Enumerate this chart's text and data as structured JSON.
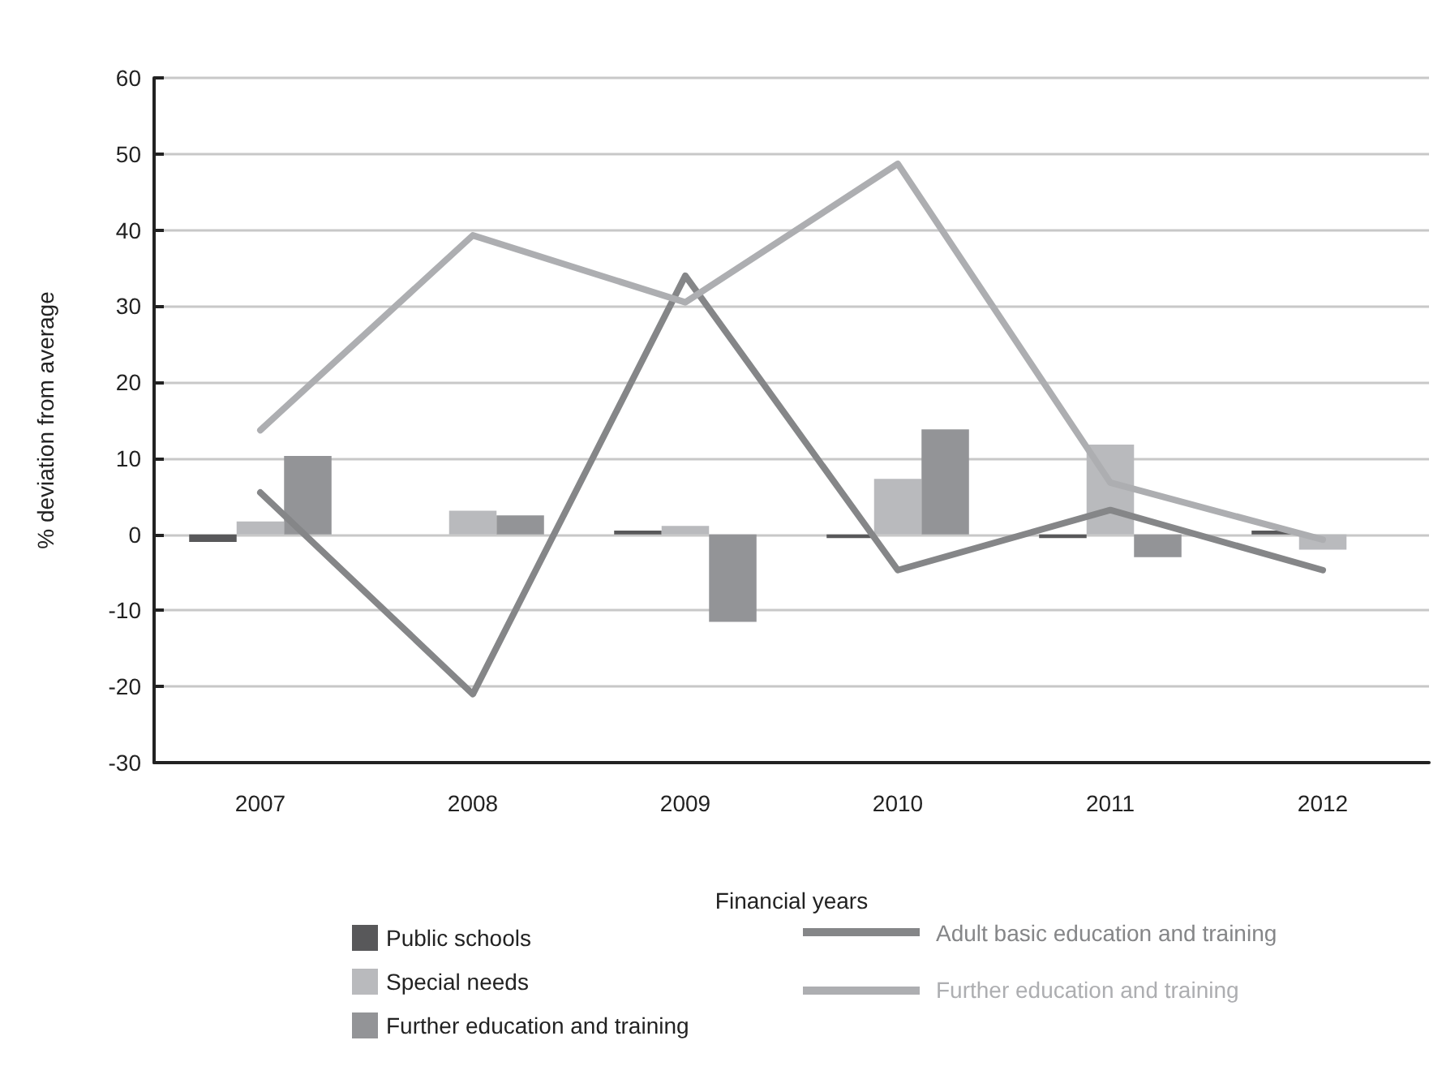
{
  "chart_data": {
    "type": "bar",
    "xlabel": "Financial years",
    "ylabel": "% deviation from average",
    "categories": [
      "2007",
      "2008",
      "2009",
      "2010",
      "2011",
      "2012"
    ],
    "series": [
      {
        "name": "Public schools",
        "color": "#58585a",
        "values": [
          -1,
          0,
          0.5,
          -0.5,
          -0.5,
          0.5
        ]
      },
      {
        "name": "Special needs",
        "color": "#b9babd",
        "values": [
          1.7,
          3.1,
          1.1,
          7.3,
          11.8,
          -2
        ]
      },
      {
        "name": "Further education and training",
        "color": "#939497",
        "values": [
          10.3,
          2.5,
          -11.5,
          13.8,
          -3,
          0
        ]
      },
      {
        "name": "Adult basic education and training",
        "type": "line",
        "color": "#858688",
        "values": [
          5.5,
          -21,
          34,
          -4.7,
          3.2,
          -4.7
        ]
      },
      {
        "name": "Further education and training",
        "type": "line",
        "color": "#adaeb1",
        "values": [
          13.7,
          39.3,
          30.5,
          48.7,
          6.8,
          -0.7
        ]
      }
    ],
    "ylim": [
      -30,
      60
    ],
    "yticks": [
      -30,
      -20,
      -10,
      0,
      10,
      20,
      30,
      40,
      50,
      60
    ],
    "grid": "y",
    "legend": "bottom",
    "marker": "none",
    "line_style": "solid"
  }
}
